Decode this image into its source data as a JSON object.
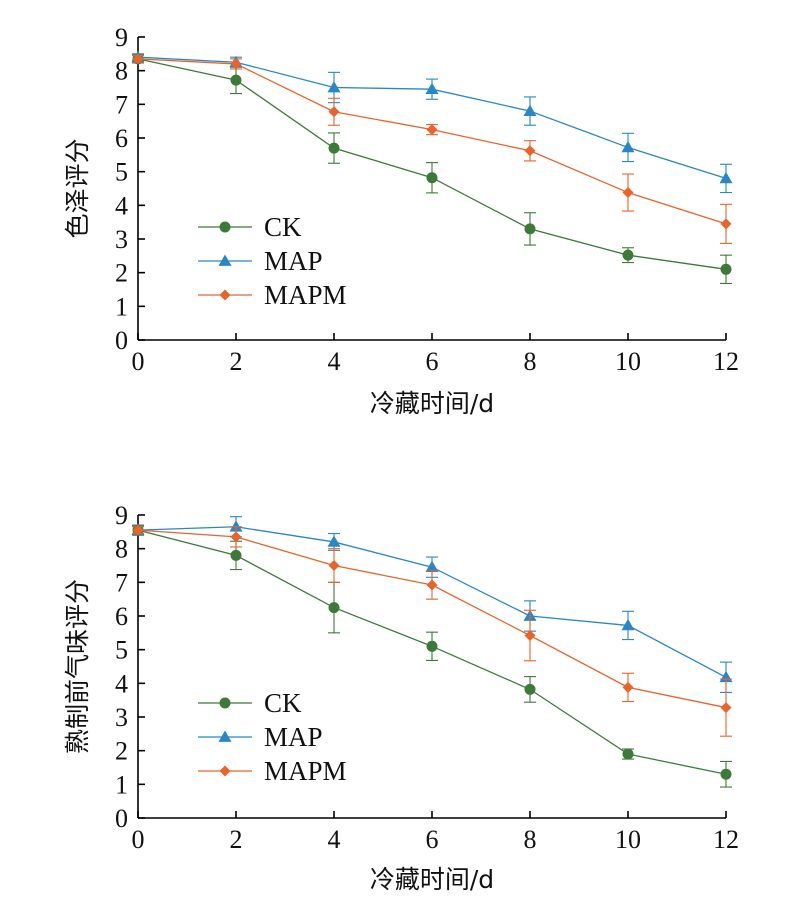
{
  "chart_data": [
    {
      "type": "line",
      "title": "",
      "xlabel": "冷藏时间/d",
      "ylabel": "色泽评分",
      "xlim": [
        0,
        12
      ],
      "ylim": [
        0,
        9
      ],
      "x_ticks": [
        "0",
        "2",
        "4",
        "6",
        "8",
        "10",
        "12"
      ],
      "y_ticks": [
        "0",
        "1",
        "2",
        "3",
        "4",
        "5",
        "6",
        "7",
        "8",
        "9"
      ],
      "legend_position": "lower-left",
      "x": [
        0,
        2,
        4,
        6,
        8,
        10,
        12
      ],
      "series": [
        {
          "name": "CK",
          "color": "#3d7a3a",
          "marker": "circle",
          "values": [
            8.35,
            7.72,
            5.7,
            4.82,
            3.3,
            2.52,
            2.1
          ],
          "errors": [
            0.12,
            0.4,
            0.45,
            0.45,
            0.48,
            0.22,
            0.42
          ]
        },
        {
          "name": "MAP",
          "color": "#2a86c4",
          "marker": "triangle",
          "values": [
            8.4,
            8.25,
            7.5,
            7.45,
            6.8,
            5.72,
            4.8
          ],
          "errors": [
            0.1,
            0.15,
            0.45,
            0.3,
            0.42,
            0.42,
            0.42
          ]
        },
        {
          "name": "MAPM",
          "color": "#e8642a",
          "marker": "diamond",
          "values": [
            8.35,
            8.2,
            6.78,
            6.25,
            5.62,
            4.38,
            3.45
          ],
          "errors": [
            0.1,
            0.15,
            0.4,
            0.15,
            0.3,
            0.55,
            0.58
          ]
        }
      ]
    },
    {
      "type": "line",
      "title": "",
      "xlabel": "冷藏时间/d",
      "ylabel": "熟制前气味评分",
      "xlim": [
        0,
        12
      ],
      "ylim": [
        0,
        9
      ],
      "x_ticks": [
        "0",
        "2",
        "4",
        "6",
        "8",
        "10",
        "12"
      ],
      "y_ticks": [
        "0",
        "1",
        "2",
        "3",
        "4",
        "5",
        "6",
        "7",
        "8",
        "9"
      ],
      "legend_position": "lower-left",
      "x": [
        0,
        2,
        4,
        6,
        8,
        10,
        12
      ],
      "series": [
        {
          "name": "CK",
          "color": "#3d7a3a",
          "marker": "circle",
          "values": [
            8.55,
            7.8,
            6.25,
            5.1,
            3.82,
            1.9,
            1.3
          ],
          "errors": [
            0.15,
            0.42,
            0.75,
            0.42,
            0.38,
            0.15,
            0.38
          ]
        },
        {
          "name": "MAP",
          "color": "#2a86c4",
          "marker": "triangle",
          "values": [
            8.55,
            8.65,
            8.2,
            7.45,
            6.0,
            5.72,
            4.18
          ],
          "errors": [
            0.12,
            0.3,
            0.25,
            0.3,
            0.45,
            0.42,
            0.45
          ]
        },
        {
          "name": "MAPM",
          "color": "#e8642a",
          "marker": "diamond",
          "values": [
            8.55,
            8.35,
            7.5,
            6.92,
            5.42,
            3.88,
            3.28
          ],
          "errors": [
            0.1,
            0.3,
            0.5,
            0.42,
            0.75,
            0.42,
            0.85
          ]
        }
      ]
    }
  ]
}
